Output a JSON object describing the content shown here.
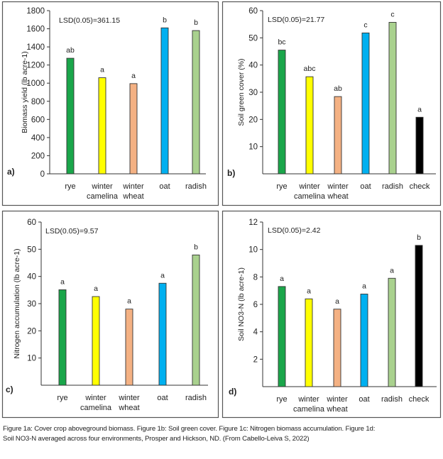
{
  "chart_data": [
    {
      "type": "bar",
      "panel_label": "a)",
      "ylabel": "Biomass yield (lb acre-1)",
      "annotation": "LSD(0.05)=361.15",
      "categories": [
        "rye",
        "winter camelina",
        "winter wheat",
        "oat",
        "radish"
      ],
      "values": [
        1275,
        1060,
        995,
        1610,
        1580
      ],
      "letters": [
        "ab",
        "a",
        "a",
        "b",
        "b"
      ],
      "ylim": [
        0,
        1800
      ],
      "yticks": [
        0,
        200,
        400,
        600,
        800,
        1000,
        1200,
        1400,
        1600,
        1800
      ],
      "grid": false
    },
    {
      "type": "bar",
      "panel_label": "b)",
      "ylabel": "Soil green cover (%)",
      "annotation": "LSD(0.05)=21.77",
      "categories": [
        "rye",
        "winter camelina",
        "winter wheat",
        "oat",
        "radish",
        "check"
      ],
      "values": [
        45.5,
        35.7,
        28.4,
        51.8,
        55.7,
        20.8
      ],
      "letters": [
        "bc",
        "abc",
        "ab",
        "c",
        "c",
        "a"
      ],
      "ylim": [
        0,
        60
      ],
      "yticks": [
        10,
        20,
        30,
        40,
        50,
        60
      ],
      "grid": false
    },
    {
      "type": "bar",
      "panel_label": "c)",
      "ylabel": "Nitrogen accumulation (lb acre-1)",
      "annotation": "LSD(0.05)=9.57",
      "categories": [
        "rye",
        "winter camelina",
        "winter wheat",
        "oat",
        "radish"
      ],
      "values": [
        35.1,
        32.6,
        28.0,
        37.5,
        47.9
      ],
      "letters": [
        "a",
        "a",
        "a",
        "a",
        "b"
      ],
      "ylim": [
        0,
        60
      ],
      "yticks": [
        10,
        20,
        30,
        40,
        50,
        60
      ],
      "grid": false
    },
    {
      "type": "bar",
      "panel_label": "d)",
      "ylabel": "Soil NO3-N  (lb acre-1)",
      "annotation": "LSD(0.05)=2.42",
      "categories": [
        "rye",
        "winter camelina",
        "winter wheat",
        "oat",
        "radish",
        "check"
      ],
      "values": [
        7.3,
        6.4,
        5.65,
        6.75,
        7.9,
        10.3
      ],
      "letters": [
        "a",
        "a",
        "a",
        "a",
        "a",
        "b"
      ],
      "ylim": [
        0,
        12
      ],
      "yticks": [
        2,
        4,
        6,
        8,
        10,
        12
      ],
      "grid": false
    }
  ],
  "bar_colors": {
    "rye": "#1aa64a",
    "winter camelina": "#ffff00",
    "winter wheat": "#f4b183",
    "oat": "#00b0f0",
    "radish": "#a9d18e",
    "check": "#000000"
  },
  "caption": {
    "line1": "Figure 1a: Cover crop aboveground biomass.  Figure 1b: Soil green cover. Figure 1c: Nitrogen biomass accumulation.  Figure 1d:",
    "line2": "Soil NO3-N  averaged across four environments, Prosper and Hickson, ND. (From Cabello-Leiva S, 2022)"
  }
}
